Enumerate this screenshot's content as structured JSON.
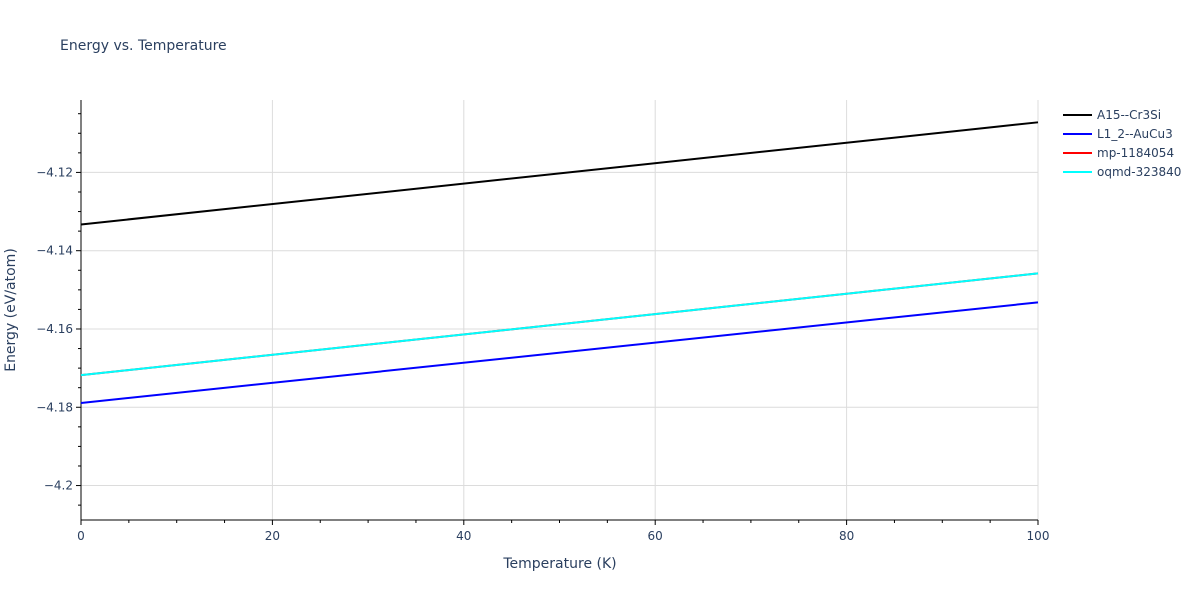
{
  "chart_data": {
    "type": "line",
    "title": "Energy vs. Temperature",
    "xlabel": "Temperature (K)",
    "ylabel": "Energy (eV/atom)",
    "xlim": [
      0,
      100
    ],
    "ylim": [
      -4.2088,
      -4.1015
    ],
    "x_ticks": [
      0,
      20,
      40,
      60,
      80,
      100
    ],
    "x_tick_labels": [
      "0",
      "20",
      "40",
      "60",
      "80",
      "100"
    ],
    "y_ticks": [
      -4.2,
      -4.18,
      -4.16,
      -4.14,
      -4.12
    ],
    "y_tick_labels": [
      "−4.2",
      "−4.18",
      "−4.16",
      "−4.14",
      "−4.12"
    ],
    "grid": true,
    "legend_position": "top-right",
    "series": [
      {
        "name": "A15--Cr3Si",
        "color": "#000000",
        "x": [
          0,
          100
        ],
        "y": [
          -4.1333,
          -4.1072
        ]
      },
      {
        "name": "L1_2--AuCu3",
        "color": "#0000ff",
        "x": [
          0,
          100
        ],
        "y": [
          -4.1789,
          -4.1532
        ]
      },
      {
        "name": "mp-1184054",
        "color": "#ff0000",
        "x": [
          0,
          100
        ],
        "y": [
          -4.1718,
          -4.1458
        ]
      },
      {
        "name": "oqmd-323840",
        "color": "#00ffff",
        "x": [
          0,
          100
        ],
        "y": [
          -4.1718,
          -4.1458
        ]
      }
    ]
  }
}
